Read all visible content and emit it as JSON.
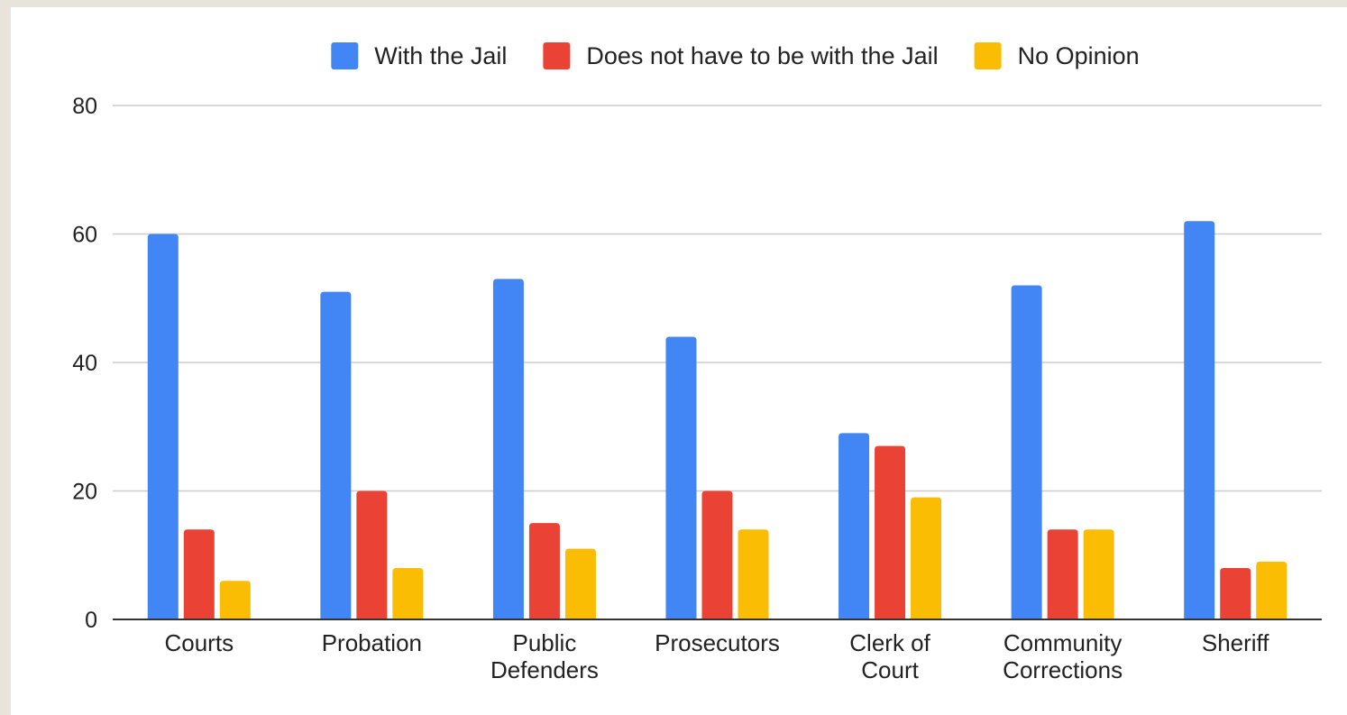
{
  "chart_data": {
    "type": "bar",
    "categories": [
      [
        "Courts"
      ],
      [
        "Probation"
      ],
      [
        "Public",
        "Defenders"
      ],
      [
        "Prosecutors"
      ],
      [
        "Clerk of",
        "Court"
      ],
      [
        "Community",
        "Corrections"
      ],
      [
        "Sheriff"
      ]
    ],
    "series": [
      {
        "name": "With the Jail",
        "color": "#4285f4",
        "values": [
          60,
          51,
          53,
          44,
          29,
          52,
          62
        ]
      },
      {
        "name": "Does not have to be with the Jail",
        "color": "#ea4335",
        "values": [
          14,
          20,
          15,
          20,
          27,
          14,
          8
        ]
      },
      {
        "name": "No Opinion",
        "color": "#fbbc04",
        "values": [
          6,
          8,
          11,
          14,
          19,
          14,
          9
        ]
      }
    ],
    "title": "",
    "xlabel": "",
    "ylabel": "",
    "ylim": [
      0,
      80
    ],
    "yticks": [
      "0",
      "20",
      "40",
      "60",
      "80"
    ],
    "grid": true,
    "legend_position": "top"
  }
}
